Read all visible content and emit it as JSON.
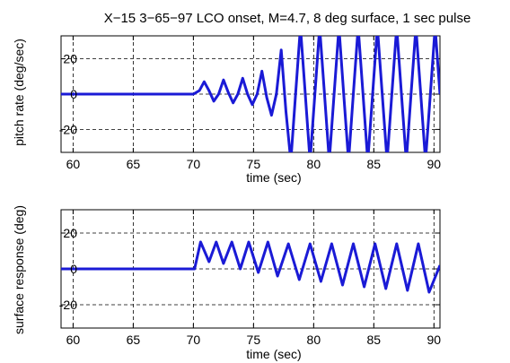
{
  "chart_data": [
    {
      "type": "line",
      "title": "X−15 3−65−97 LCO onset, M=4.7, 8 deg surface, 1 sec pulse",
      "xlabel": "time (sec)",
      "ylabel": "pitch rate (deg/sec)",
      "xlim": [
        59,
        90.5
      ],
      "ylim": [
        -33,
        33
      ],
      "xticks": [
        60,
        65,
        70,
        75,
        80,
        85,
        90
      ],
      "yticks": [
        -20,
        0,
        20
      ],
      "xtick_labels": [
        "60",
        "65",
        "70",
        "75",
        "80",
        "85",
        "90"
      ],
      "ytick_labels": [
        "-20",
        "0",
        "20"
      ],
      "grid": true,
      "series": [
        {
          "color": "#1a1ad6",
          "x": [
            59,
            70,
            70.5,
            70.9,
            71.3,
            71.7,
            72.1,
            72.5,
            72.9,
            73.3,
            73.7,
            74.1,
            74.5,
            74.9,
            75.3,
            75.7,
            76.1,
            76.5,
            76.9,
            77.3,
            77.7,
            78.1,
            78.5,
            78.9,
            79.3,
            79.7,
            80.1,
            80.5,
            80.9,
            81.3,
            81.7,
            82.1,
            82.5,
            82.9,
            83.3,
            83.7,
            84.1,
            84.5,
            84.9,
            85.3,
            85.7,
            86.1,
            86.5,
            86.9,
            87.3,
            87.7,
            88.1,
            88.5,
            88.9,
            89.3,
            89.7,
            90.1,
            90.5
          ],
          "y": [
            0,
            0,
            2,
            7,
            2,
            -4,
            0,
            8,
            1,
            -5,
            0,
            9,
            0,
            -6,
            0,
            13,
            -2,
            -12,
            0,
            25,
            -10,
            -38,
            0,
            38,
            0,
            -38,
            0,
            38,
            0,
            -38,
            0,
            38,
            0,
            -38,
            0,
            38,
            0,
            -38,
            0,
            38,
            0,
            -38,
            0,
            38,
            0,
            -38,
            0,
            38,
            0,
            -38,
            0,
            38,
            0
          ]
        }
      ]
    },
    {
      "type": "line",
      "title": "",
      "xlabel": "time (sec)",
      "ylabel": "surface response (deg)",
      "xlim": [
        59,
        90.5
      ],
      "ylim": [
        -33,
        33
      ],
      "xticks": [
        60,
        65,
        70,
        75,
        80,
        85,
        90
      ],
      "yticks": [
        -20,
        0,
        20
      ],
      "xtick_labels": [
        "60",
        "65",
        "70",
        "75",
        "80",
        "85",
        "90"
      ],
      "ytick_labels": [
        "-20",
        "0",
        "20"
      ],
      "grid": true,
      "series": [
        {
          "color": "#1a1ad6",
          "x": [
            59,
            70.1,
            70.6,
            71.3,
            71.9,
            72.5,
            73.2,
            73.9,
            74.6,
            75.4,
            76.2,
            77.0,
            77.9,
            78.8,
            79.7,
            80.6,
            81.5,
            82.4,
            83.3,
            84.2,
            85.1,
            86.0,
            86.9,
            87.8,
            88.7,
            89.6,
            90.5
          ],
          "y": [
            0,
            0,
            15,
            4,
            15,
            3,
            15,
            0,
            15,
            -2,
            15,
            -4,
            14,
            -6,
            14,
            -7,
            14,
            -9,
            14,
            -10,
            14,
            -11,
            14,
            -12,
            14,
            -13,
            2
          ]
        }
      ]
    }
  ]
}
